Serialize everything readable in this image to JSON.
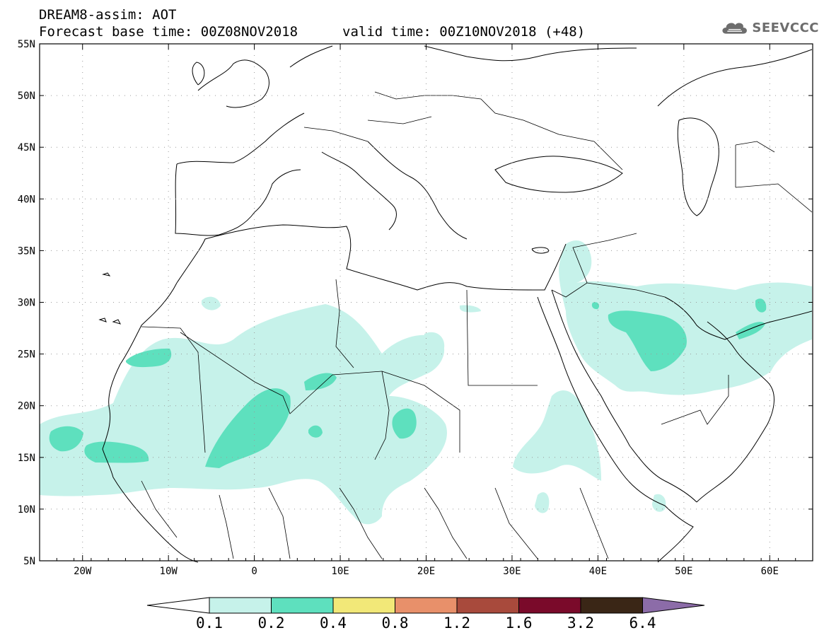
{
  "header": {
    "title": "DREAM8-assim: AOT",
    "base_time": "Forecast base time: 00Z08NOV2018",
    "valid_time": "valid time: 00Z10NOV2018 (+48)"
  },
  "logo": {
    "text": "SEEVCCC",
    "icon": "cloud-icon"
  },
  "map": {
    "projection": "lat-lon",
    "lon_range": [
      -25,
      65
    ],
    "lat_range": [
      5,
      55
    ],
    "lat_ticks": [
      "55N",
      "50N",
      "45N",
      "40N",
      "35N",
      "30N",
      "25N",
      "20N",
      "15N",
      "10N",
      "5N"
    ],
    "lon_ticks": [
      "20W",
      "10W",
      "0",
      "10E",
      "20E",
      "30E",
      "40E",
      "50E",
      "60E"
    ],
    "grid": "dotted"
  },
  "colorbar": {
    "labels": [
      "0.1",
      "0.2",
      "0.4",
      "0.8",
      "1.2",
      "1.6",
      "3.2",
      "6.4"
    ],
    "colors": [
      "#c6f2ea",
      "#5ee0be",
      "#f2e878",
      "#e8906a",
      "#a84a3c",
      "#7a0a2a",
      "#3a2616",
      "#8c6ca8"
    ],
    "below_color": "#ffffff"
  }
}
